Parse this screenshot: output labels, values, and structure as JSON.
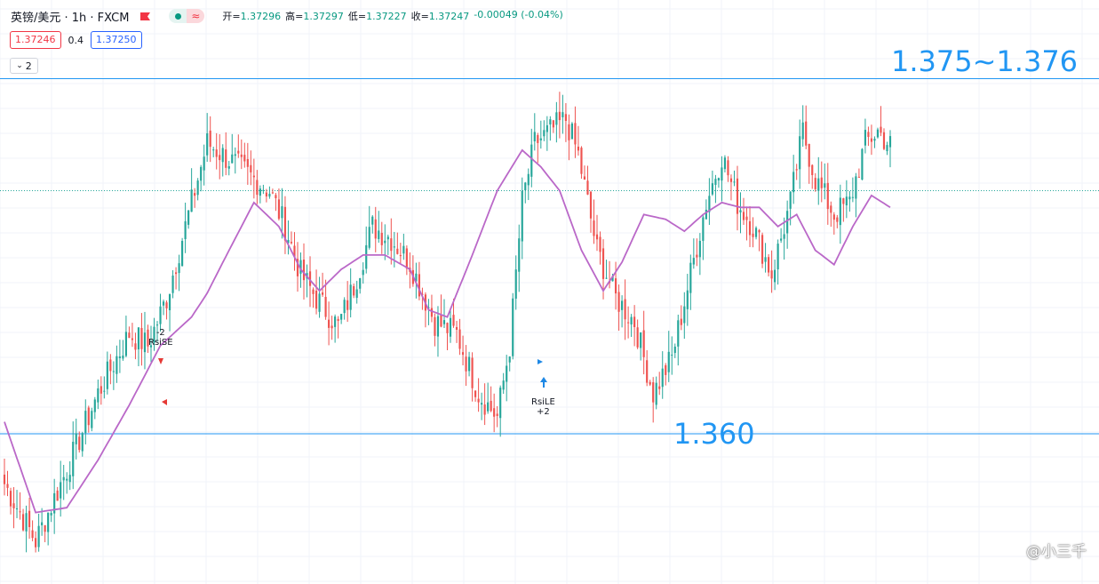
{
  "header": {
    "symbol_title": "英镑/美元 · 1h · FXCM",
    "status_wave": "≈",
    "ohlc": [
      {
        "label": "开",
        "value": "1.37296"
      },
      {
        "label": "高",
        "value": "1.37297"
      },
      {
        "label": "低",
        "value": "1.37227"
      },
      {
        "label": "收",
        "value": "1.37247"
      }
    ],
    "change": "-0.00049 (-0.04%)"
  },
  "quote": {
    "bid": "1.37246",
    "spread": "0.4",
    "ask": "1.37250"
  },
  "indicator_toggle": {
    "count": "2"
  },
  "annotations": {
    "resistance_label": "1.375~1.376",
    "support_label": "1.360",
    "signal_short": {
      "qty": "-2",
      "name": "RsiSE"
    },
    "signal_long": {
      "name": "RsiLE",
      "qty": "+2"
    }
  },
  "watermark": "@小三千",
  "colors": {
    "up": "#26a69a",
    "down": "#ef5350",
    "ma": "#ba68c8",
    "level": "#2196f3",
    "grid": "#f0f3fa"
  },
  "chart_data": {
    "type": "candlestick",
    "symbol": "英镑/美元",
    "interval": "1h",
    "ylim": [
      1.354,
      1.3785
    ],
    "horizontal_levels": [
      {
        "value": 1.3752,
        "label": "1.375~1.376",
        "style": "solid"
      },
      {
        "value": 1.3705,
        "label": "",
        "style": "dotted"
      },
      {
        "value": 1.3603,
        "label": "1.360",
        "style": "solid"
      }
    ],
    "close_path": [
      [
        0,
        1.3582
      ],
      [
        10,
        1.3558
      ],
      [
        20,
        1.3588
      ],
      [
        30,
        1.362
      ],
      [
        40,
        1.3645
      ],
      [
        46,
        1.364
      ],
      [
        52,
        1.366
      ],
      [
        60,
        1.37
      ],
      [
        65,
        1.3725
      ],
      [
        70,
        1.372
      ],
      [
        75,
        1.3715
      ],
      [
        80,
        1.371
      ],
      [
        85,
        1.3705
      ],
      [
        90,
        1.369
      ],
      [
        95,
        1.367
      ],
      [
        100,
        1.366
      ],
      [
        107,
        1.3648
      ],
      [
        112,
        1.3665
      ],
      [
        118,
        1.369
      ],
      [
        124,
        1.3685
      ],
      [
        130,
        1.3675
      ],
      [
        138,
        1.365
      ],
      [
        145,
        1.3645
      ],
      [
        152,
        1.362
      ],
      [
        158,
        1.361
      ],
      [
        162,
        1.364
      ],
      [
        166,
        1.37
      ],
      [
        170,
        1.3725
      ],
      [
        175,
        1.373
      ],
      [
        180,
        1.3735
      ],
      [
        184,
        1.372
      ],
      [
        190,
        1.368
      ],
      [
        196,
        1.366
      ],
      [
        202,
        1.365
      ],
      [
        208,
        1.362
      ],
      [
        214,
        1.3635
      ],
      [
        220,
        1.367
      ],
      [
        225,
        1.37
      ],
      [
        230,
        1.372
      ],
      [
        235,
        1.37
      ],
      [
        240,
        1.369
      ],
      [
        246,
        1.367
      ],
      [
        252,
        1.37
      ],
      [
        256,
        1.373
      ],
      [
        260,
        1.371
      ],
      [
        266,
        1.3695
      ],
      [
        271,
        1.37
      ],
      [
        276,
        1.3725
      ],
      [
        280,
        1.373
      ],
      [
        284,
        1.3724
      ]
    ],
    "ma_path": [
      [
        0,
        1.3608
      ],
      [
        10,
        1.357
      ],
      [
        20,
        1.3572
      ],
      [
        30,
        1.3592
      ],
      [
        40,
        1.3615
      ],
      [
        50,
        1.364
      ],
      [
        60,
        1.3652
      ],
      [
        65,
        1.3662
      ],
      [
        72,
        1.368
      ],
      [
        80,
        1.37
      ],
      [
        88,
        1.369
      ],
      [
        95,
        1.3672
      ],
      [
        101,
        1.3663
      ],
      [
        108,
        1.3672
      ],
      [
        115,
        1.3678
      ],
      [
        122,
        1.3678
      ],
      [
        130,
        1.3672
      ],
      [
        136,
        1.3655
      ],
      [
        142,
        1.3652
      ],
      [
        150,
        1.3678
      ],
      [
        158,
        1.3705
      ],
      [
        166,
        1.3722
      ],
      [
        172,
        1.3715
      ],
      [
        178,
        1.3705
      ],
      [
        185,
        1.368
      ],
      [
        192,
        1.3663
      ],
      [
        198,
        1.3675
      ],
      [
        205,
        1.3695
      ],
      [
        212,
        1.3693
      ],
      [
        218,
        1.3688
      ],
      [
        224,
        1.3695
      ],
      [
        230,
        1.37
      ],
      [
        236,
        1.3698
      ],
      [
        242,
        1.3698
      ],
      [
        248,
        1.369
      ],
      [
        254,
        1.3695
      ],
      [
        260,
        1.368
      ],
      [
        266,
        1.3674
      ],
      [
        272,
        1.369
      ],
      [
        278,
        1.3703
      ],
      [
        284,
        1.3698
      ]
    ]
  }
}
